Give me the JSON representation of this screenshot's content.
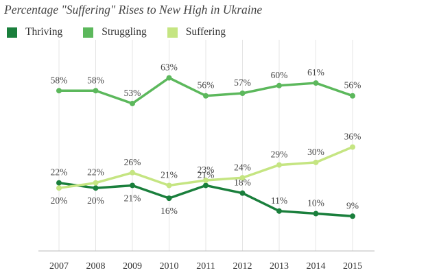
{
  "chart_data": {
    "type": "line",
    "title": "Percentage \"Suffering\" Rises to New High in Ukraine",
    "categories": [
      "2007",
      "2008",
      "2009",
      "2010",
      "2011",
      "2012",
      "2013",
      "2014",
      "2015"
    ],
    "series": [
      {
        "name": "Thriving",
        "color": "#1a7f3c",
        "values": [
          22,
          20,
          21,
          16,
          21,
          18,
          11,
          10,
          9
        ],
        "labels": [
          "22%",
          "20%",
          "21%",
          "16%",
          "21%",
          "18%",
          "11%",
          "10%",
          "9%"
        ]
      },
      {
        "name": "Struggling",
        "color": "#5cb85c",
        "values": [
          58,
          58,
          53,
          63,
          56,
          57,
          60,
          61,
          56
        ],
        "labels": [
          "58%",
          "58%",
          "53%",
          "63%",
          "56%",
          "57%",
          "60%",
          "61%",
          "56%"
        ]
      },
      {
        "name": "Suffering",
        "color": "#c5e582",
        "values": [
          20,
          22,
          26,
          21,
          23,
          24,
          29,
          30,
          36
        ],
        "labels": [
          "20%",
          "22%",
          "26%",
          "21%",
          "23%",
          "24%",
          "29%",
          "30%",
          "36%"
        ]
      }
    ],
    "ylim": [
      0,
      65
    ],
    "legend_position": "top-left",
    "grid": "vertical"
  }
}
